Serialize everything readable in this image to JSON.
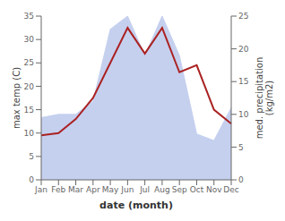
{
  "chart_data": {
    "type": "line",
    "categories": [
      "Jan",
      "Feb",
      "Mar",
      "Apr",
      "May",
      "Jun",
      "Jul",
      "Aug",
      "Sep",
      "Oct",
      "Nov",
      "Dec"
    ],
    "series": [
      {
        "type": "area",
        "axis": "y2",
        "color": "#c5d0ef",
        "values": [
          9.5,
          10.0,
          10.0,
          12.0,
          23.0,
          25.0,
          19.0,
          25.0,
          19.0,
          7.0,
          6.0,
          11.0
        ]
      },
      {
        "type": "line",
        "color": "#aa2222",
        "values": [
          9.5,
          10.0,
          13.0,
          17.5,
          25.0,
          32.5,
          27.0,
          32.5,
          23.0,
          24.5,
          15.0,
          12.0
        ]
      }
    ],
    "xlabel": "date (month)",
    "ylabel": "max temp (C)",
    "y2label": "med. precipitation\n(kg/m2)",
    "ylim": [
      0,
      35
    ],
    "yticks": [
      0,
      5,
      10,
      15,
      20,
      25,
      30,
      35
    ],
    "y2lim": [
      0,
      25
    ],
    "y2ticks": [
      0,
      5,
      10,
      15,
      20,
      25
    ],
    "grid": false
  }
}
